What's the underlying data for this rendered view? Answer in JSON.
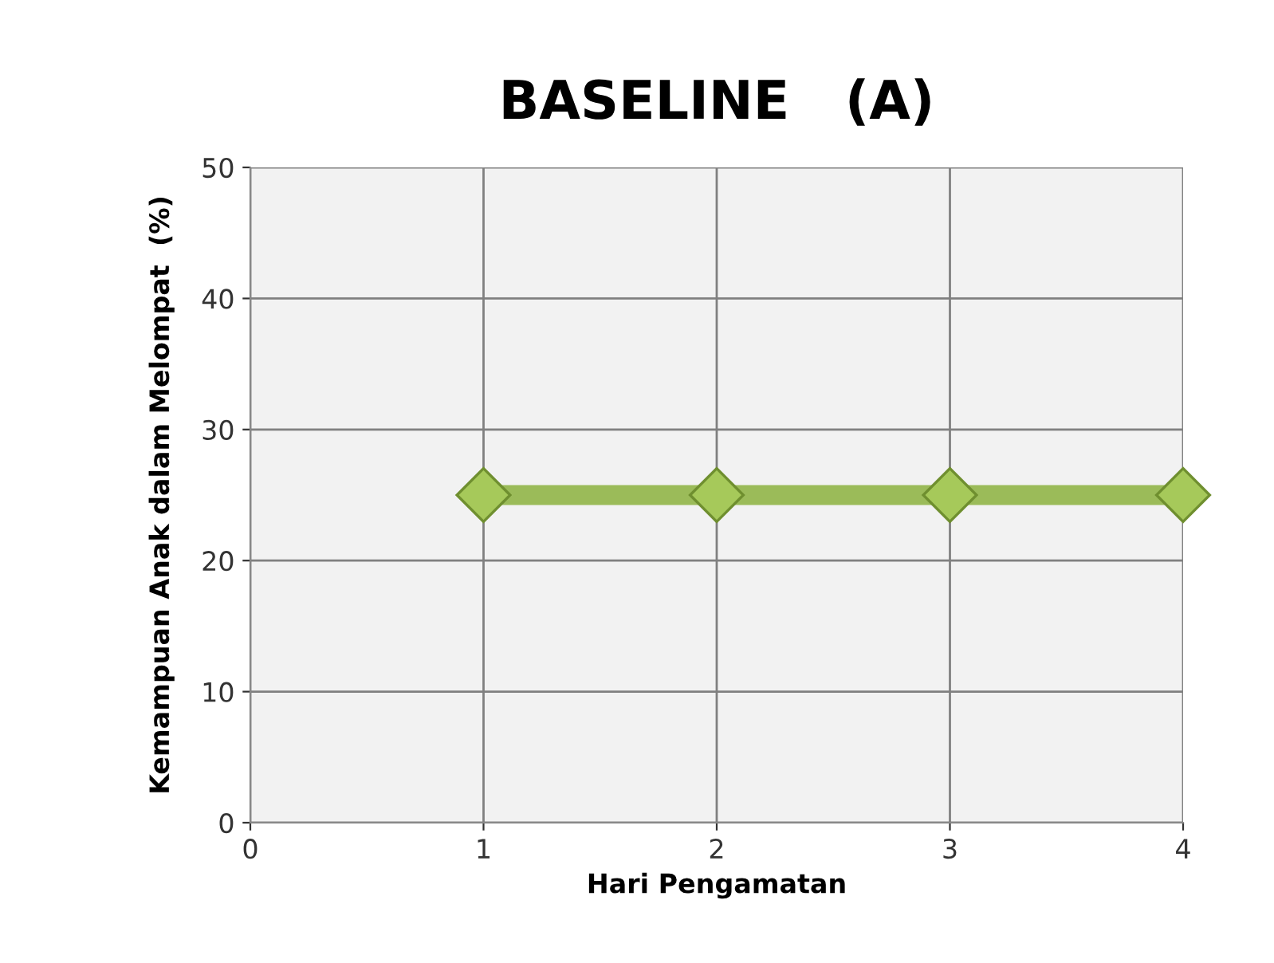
{
  "chart_data": {
    "type": "line",
    "title": "BASELINE   (A)",
    "xlabel": "Hari Pengamatan",
    "ylabel": "Kemampuan Anak dalam Melompat  (%)",
    "x": [
      1,
      2,
      3,
      4
    ],
    "series": [
      {
        "color": "#9bbb59",
        "values": [
          25,
          25,
          25,
          25
        ]
      }
    ],
    "xlim": [
      0,
      4
    ],
    "ylim": [
      0,
      50
    ],
    "xticks": [
      0,
      1,
      2,
      3,
      4
    ],
    "yticks": [
      0,
      10,
      20,
      30,
      40,
      50
    ],
    "grid": true,
    "marker": "diamond",
    "line_style": "solid"
  }
}
